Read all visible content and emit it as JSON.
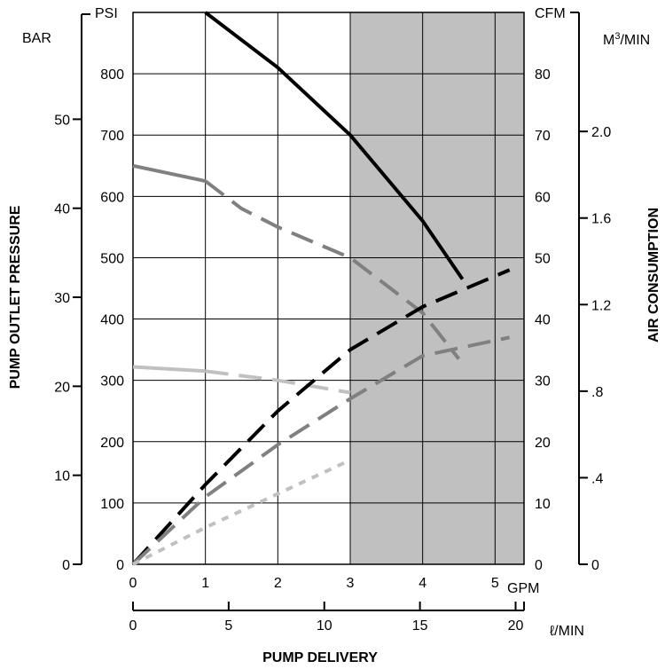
{
  "chart_data": {
    "type": "line",
    "title": "",
    "xlabel": "PUMP DELIVERY",
    "ylabel_left": "PUMP OUTLET PRESSURE",
    "ylabel_right": "AIR CONSUMPTION",
    "units": {
      "psi": "PSI",
      "bar": "BAR",
      "cfm": "CFM",
      "m3min_prefix": "M",
      "m3min_sup": "3",
      "m3min_suffix": "/MIN",
      "gpm": "GPM",
      "lmin": "ℓ/MIN"
    },
    "axes": {
      "gpm": {
        "range": [
          0,
          5.4
        ],
        "ticks": [
          "0",
          "1",
          "2",
          "3",
          "4",
          "5"
        ]
      },
      "lmin": {
        "range": [
          0,
          20.44
        ],
        "ticks": [
          "0",
          "5",
          "10",
          "15",
          "20"
        ]
      },
      "psi": {
        "range": [
          0,
          900
        ],
        "ticks": [
          "0",
          "100",
          "200",
          "300",
          "400",
          "500",
          "600",
          "700",
          "800"
        ]
      },
      "bar": {
        "range": [
          0,
          62
        ],
        "ticks": [
          "0",
          "10",
          "20",
          "30",
          "40",
          "50"
        ]
      },
      "cfm": {
        "range": [
          0,
          90
        ],
        "ticks": [
          "0",
          "10",
          "20",
          "30",
          "40",
          "50",
          "60",
          "70",
          "80"
        ]
      },
      "m3min": {
        "range": [
          0,
          2.55
        ],
        "ticks": [
          "0",
          ".4",
          ".8",
          "1.2",
          "1.6",
          "2.0"
        ]
      }
    },
    "shaded_region": {
      "x_from": 3,
      "x_to": 5.4,
      "x_units": "GPM",
      "color": "#c0c0c0"
    },
    "grid": true,
    "series": [
      {
        "kind": "pressure",
        "style": "solid",
        "color": "#000000",
        "x_gpm": [
          1,
          2,
          3,
          4,
          4.55
        ],
        "y_psi": [
          900,
          810,
          700,
          560,
          465
        ]
      },
      {
        "kind": "pressure",
        "style": "solid-then-dashed",
        "color": "#808080",
        "x_gpm": [
          0,
          1,
          1.5,
          2,
          3,
          4,
          4.5
        ],
        "y_psi": [
          650,
          625,
          580,
          550,
          500,
          410,
          335
        ]
      },
      {
        "kind": "pressure",
        "style": "solid-then-dashed",
        "color": "#c0c0c0",
        "x_gpm": [
          0,
          1,
          2,
          3
        ],
        "y_psi": [
          322,
          315,
          300,
          280
        ]
      },
      {
        "kind": "air",
        "style": "dashed",
        "color": "#000000",
        "x_gpm": [
          0,
          1,
          2,
          3,
          4,
          5.2
        ],
        "y_cfm": [
          0,
          13,
          25,
          35,
          42,
          48
        ]
      },
      {
        "kind": "air",
        "style": "dashed",
        "color": "#808080",
        "x_gpm": [
          0,
          1,
          2,
          3,
          4,
          5.2
        ],
        "y_cfm": [
          0,
          11,
          19.5,
          27,
          34,
          37
        ]
      },
      {
        "kind": "air",
        "style": "dotted",
        "color": "#c0c0c0",
        "x_gpm": [
          0,
          1,
          2,
          3
        ],
        "y_cfm": [
          0,
          6,
          11.5,
          17
        ]
      }
    ]
  }
}
